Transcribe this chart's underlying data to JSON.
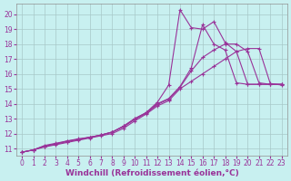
{
  "xlabel": "Windchill (Refroidissement éolien,°C)",
  "bg_color": "#c8f0f0",
  "grid_color": "#a8c8c8",
  "line_color": "#993399",
  "xlim": [
    -0.5,
    23.5
  ],
  "ylim": [
    10.5,
    20.7
  ],
  "xticks": [
    0,
    1,
    2,
    3,
    4,
    5,
    6,
    7,
    8,
    9,
    10,
    11,
    12,
    13,
    14,
    15,
    16,
    17,
    18,
    19,
    20,
    21,
    22,
    23
  ],
  "yticks": [
    11,
    12,
    13,
    14,
    15,
    16,
    17,
    18,
    19,
    20
  ],
  "lines": [
    {
      "x": [
        0,
        1,
        2,
        3,
        4,
        5,
        6,
        7,
        8,
        9,
        10,
        11,
        12,
        13,
        14,
        15,
        16,
        17,
        18,
        19,
        20,
        21,
        22,
        23
      ],
      "y": [
        10.75,
        10.9,
        11.2,
        11.35,
        11.5,
        11.65,
        11.75,
        11.9,
        12.1,
        12.5,
        13.0,
        13.4,
        14.1,
        15.25,
        20.3,
        19.1,
        19.0,
        19.5,
        18.1,
        17.5,
        15.3,
        15.3,
        15.3,
        15.3
      ]
    },
    {
      "x": [
        0,
        1,
        2,
        3,
        4,
        5,
        6,
        7,
        8,
        9,
        10,
        11,
        12,
        13,
        14,
        15,
        16,
        17,
        18,
        19,
        20,
        21,
        22,
        23
      ],
      "y": [
        10.75,
        10.9,
        11.15,
        11.3,
        11.5,
        11.6,
        11.75,
        11.9,
        12.1,
        12.5,
        13.0,
        13.4,
        14.0,
        14.35,
        15.15,
        16.4,
        19.3,
        18.0,
        17.6,
        15.4,
        15.3,
        15.3,
        15.3,
        15.3
      ]
    },
    {
      "x": [
        0,
        1,
        2,
        3,
        4,
        5,
        6,
        7,
        8,
        9,
        10,
        11,
        12,
        13,
        14,
        15,
        16,
        17,
        18,
        19,
        20,
        21,
        22,
        23
      ],
      "y": [
        10.75,
        10.9,
        11.15,
        11.3,
        11.45,
        11.6,
        11.75,
        11.9,
        12.1,
        12.45,
        12.95,
        13.35,
        13.95,
        14.3,
        15.1,
        16.2,
        17.1,
        17.6,
        18.0,
        18.0,
        17.5,
        15.4,
        15.3,
        15.3
      ]
    },
    {
      "x": [
        0,
        1,
        2,
        3,
        4,
        5,
        6,
        7,
        8,
        9,
        10,
        11,
        12,
        13,
        14,
        15,
        16,
        17,
        18,
        19,
        20,
        21,
        22,
        23
      ],
      "y": [
        10.75,
        10.9,
        11.1,
        11.25,
        11.4,
        11.55,
        11.7,
        11.85,
        12.0,
        12.35,
        12.85,
        13.3,
        13.85,
        14.2,
        15.0,
        15.5,
        16.0,
        16.5,
        17.0,
        17.5,
        17.7,
        17.7,
        15.35,
        15.25
      ]
    }
  ],
  "marker": "+",
  "markersize": 3.5,
  "linewidth": 0.8,
  "tick_fontsize": 5.5,
  "xlabel_fontsize": 6.5
}
